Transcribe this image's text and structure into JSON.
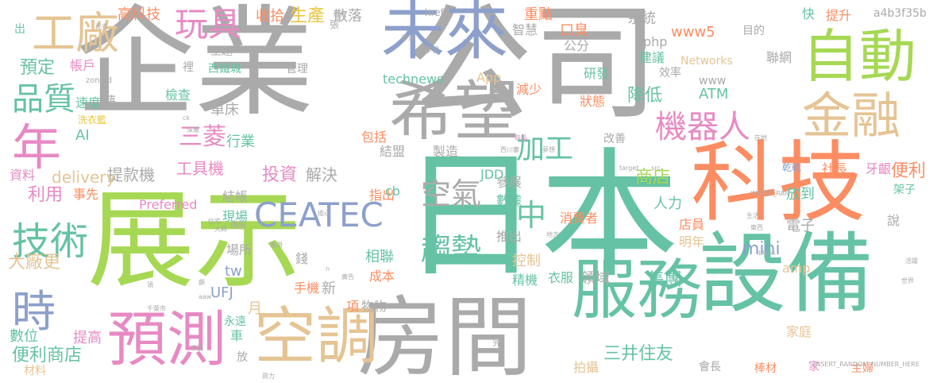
{
  "colors": {
    "gray": "#aaaaaa",
    "green": "#66c2a5",
    "orange": "#fc8d62",
    "blue": "#8da0cb",
    "pink": "#e78ac3",
    "lime": "#a6d854",
    "yellow": "#e8c73f",
    "tan": "#e5c494"
  },
  "words": [
    "企業",
    "公司",
    "日本",
    "展示",
    "科技",
    "設備",
    "房間",
    "希望",
    "未來",
    "自動",
    "金融",
    "服務",
    "空調",
    "預測",
    "工廠",
    "年",
    "技術",
    "時",
    "玩具",
    "品質",
    "機器人",
    "CEATEC",
    "空氣",
    "趨勢",
    "加工",
    "中",
    "三菱",
    "工具機",
    "便利商店",
    "大廠更",
    "投資",
    "提款機",
    "解決",
    "delivery",
    "資料",
    "利用",
    "事先",
    "數位",
    "提高",
    "材料",
    "預定",
    "帳戶",
    "主題",
    "西鐵城",
    "technews",
    "App",
    "減少",
    "狀態",
    "降低",
    "ATM",
    "www",
    "Networks",
    "效率",
    "建議",
    "研發",
    "公分",
    "php",
    "www5",
    "目的",
    "系統",
    "重點",
    "口臭",
    "智慧",
    "高科技",
    "收拾",
    "生產",
    "散落",
    "快",
    "提升",
    "a4b3f35b",
    "聯網",
    "便利",
    "牙齦",
    "社長",
    "乾乾",
    "商店",
    "店員",
    "人力",
    "明年",
    "電子",
    "放到",
    "說",
    "mini",
    "集團",
    "家庭",
    "amp",
    "主婦",
    "棒材",
    "會長",
    "拍攝",
    "三井住友",
    "消費者",
    "衣服",
    "精機",
    "領域",
    "控制",
    "成本",
    "相聯",
    "推出",
    "參展",
    "數據",
    "JDD",
    "製造",
    "結盟",
    "包括",
    "AI",
    "行業",
    "車床",
    "檢查",
    "速度",
    "藉",
    "洗衣籃",
    "裡",
    "管理",
    "改善",
    "Preferred",
    "結帳",
    "現場",
    "場所",
    "錢",
    "新",
    "指出",
    "物物",
    "項",
    "月",
    "UFJ",
    "手機",
    "車",
    "放",
    "tw",
    "cb",
    "永遠",
    "家",
    "出",
    "時代",
    "href",
    "淨淨",
    "學習",
    "張",
    "西川審",
    "商品",
    "夢想",
    "地方",
    "target",
    "src",
    "東西",
    "架子",
    "活躍",
    "世界",
    "一向",
    "生活",
    "在地",
    "INSERT_RANDOM_NUMBER_HERE",
    "INSERT_RAN",
    "blank",
    "img",
    "zoneid",
    "ck",
    "深層",
    "洗衣",
    "擔心",
    "大師",
    "住宅",
    "傳感",
    "專用",
    "n",
    "aaw",
    "完",
    "廣告",
    "顧",
    "領",
    "千葉市",
    "買力",
    "準備",
    "指示",
    "地點",
    "選出"
  ]
}
